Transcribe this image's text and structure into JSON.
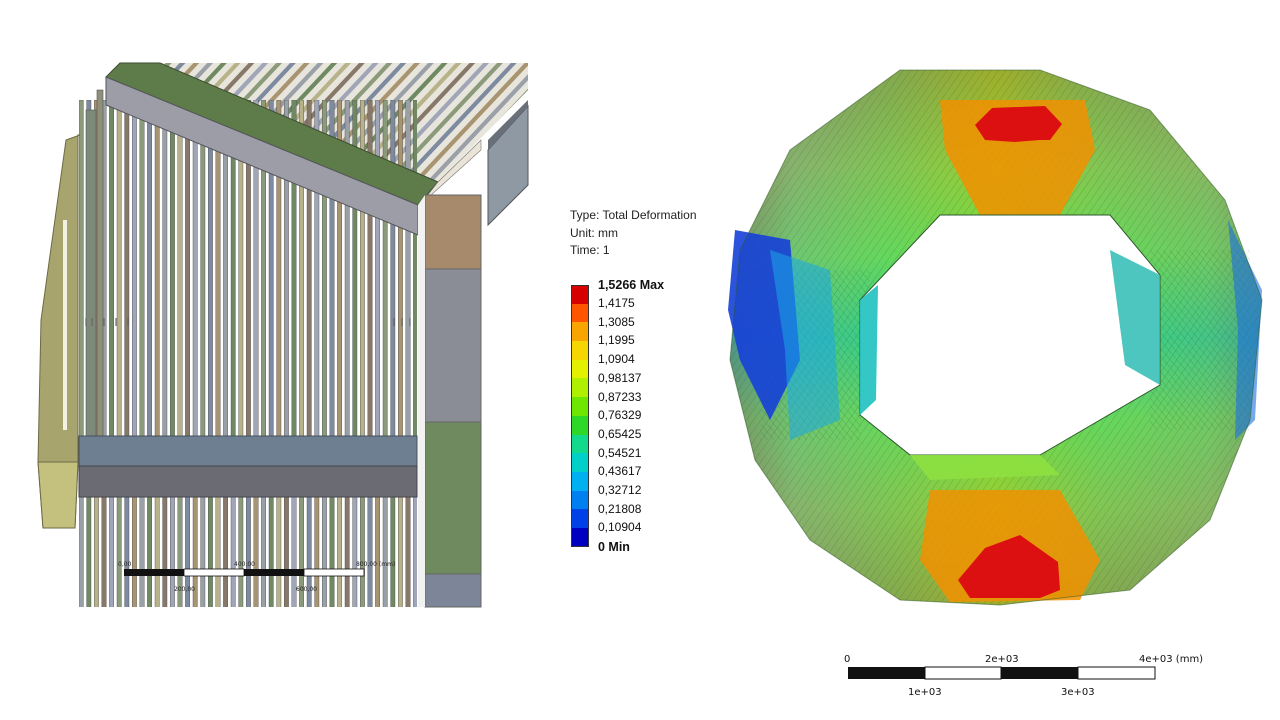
{
  "legend": {
    "type_line": "Type: Total Deformation",
    "unit_line": "Unit: mm",
    "time_line": "Time: 1",
    "max_label": "1,5266 Max",
    "min_label": "0 Min",
    "levels": [
      "1,4175",
      "1,3085",
      "1,1995",
      "1,0904",
      "0,98137",
      "0,87233",
      "0,76329",
      "0,65425",
      "0,54521",
      "0,43617",
      "0,32712",
      "0,21808",
      "0,10904"
    ],
    "colors": [
      "#d70000",
      "#ff5500",
      "#f9a500",
      "#f5d600",
      "#e3f000",
      "#aef000",
      "#6fe600",
      "#2ed829",
      "#12d98c",
      "#00d0c8",
      "#00b0f0",
      "#0080f0",
      "#0040e8",
      "#0000c0"
    ]
  },
  "left_scale": {
    "top_ticks": [
      "0,00",
      "400,00",
      "800,00 (mm)"
    ],
    "bottom_ticks": [
      "200,00",
      "600,00"
    ]
  },
  "right_scale": {
    "top_ticks": [
      "0",
      "2e+03",
      "4e+03 (mm)"
    ],
    "bottom_ticks": [
      "1e+03",
      "3e+03"
    ]
  }
}
